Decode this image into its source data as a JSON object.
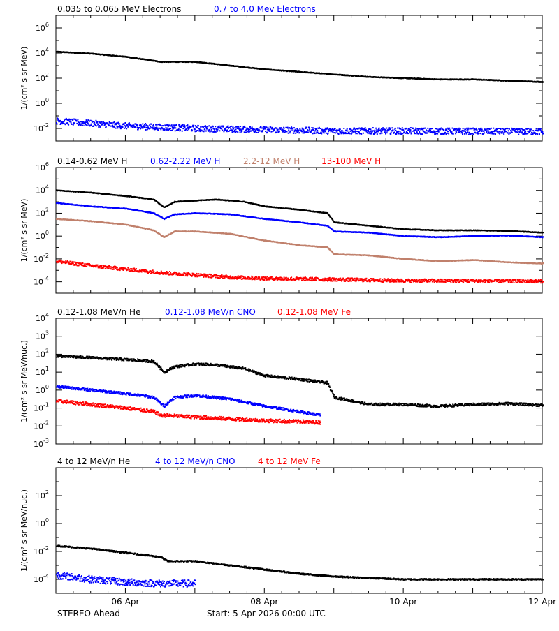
{
  "colors": {
    "black": "#000000",
    "blue": "#0000ff",
    "tan": "#c0806c",
    "red": "#ff0000"
  },
  "footer": {
    "left": "STEREO Ahead",
    "center": "Start:  5-Apr-2026 00:00 UTC"
  },
  "x_axis": {
    "range_days": [
      0,
      7
    ],
    "ticks": [
      {
        "day": 1,
        "label": "06-Apr"
      },
      {
        "day": 3,
        "label": "08-Apr"
      },
      {
        "day": 5,
        "label": "10-Apr"
      },
      {
        "day": 7,
        "label": "12-Apr"
      }
    ]
  },
  "chart_data": [
    {
      "type": "scatter",
      "ylabel": "1/(cm² s sr MeV)",
      "yscale": "log",
      "ylim_exp": [
        -3,
        7
      ],
      "major_tick_exps": [
        -2,
        0,
        2,
        4,
        6
      ],
      "tick_labels": [
        {
          "exp": -2,
          "label": "10-2"
        },
        {
          "exp": 0,
          "label": "100"
        },
        {
          "exp": 2,
          "label": "102"
        },
        {
          "exp": 4,
          "label": "104"
        },
        {
          "exp": 6,
          "label": "106"
        }
      ],
      "series": [
        {
          "name": "0.035 to 0.065 MeV Electrons",
          "color": "#000000",
          "spread": 0.03,
          "log_values": [
            [
              0,
              4.1
            ],
            [
              0.5,
              3.95
            ],
            [
              1,
              3.7
            ],
            [
              1.5,
              3.3
            ],
            [
              2,
              3.3
            ],
            [
              2.5,
              3.0
            ],
            [
              3,
              2.7
            ],
            [
              3.5,
              2.5
            ],
            [
              4,
              2.3
            ],
            [
              4.5,
              2.1
            ],
            [
              5,
              2.0
            ],
            [
              5.5,
              1.9
            ],
            [
              6,
              1.9
            ],
            [
              6.5,
              1.8
            ],
            [
              7,
              1.7
            ]
          ]
        },
        {
          "name": "0.7 to 4.0 Mev Electrons",
          "color": "#0000ff",
          "spread": 0.25,
          "log_values": [
            [
              0,
              -1.4
            ],
            [
              1,
              -1.8
            ],
            [
              2,
              -2.0
            ],
            [
              3,
              -2.1
            ],
            [
              4,
              -2.2
            ],
            [
              5,
              -2.2
            ],
            [
              7,
              -2.25
            ]
          ]
        }
      ]
    },
    {
      "type": "scatter",
      "ylabel": "1/(cm² s sr MeV)",
      "yscale": "log",
      "ylim_exp": [
        -5,
        6
      ],
      "major_tick_exps": [
        -4,
        -2,
        0,
        2,
        4,
        6
      ],
      "tick_labels": [
        {
          "exp": -4,
          "label": "10-4"
        },
        {
          "exp": -2,
          "label": "10-2"
        },
        {
          "exp": 0,
          "label": "100"
        },
        {
          "exp": 2,
          "label": "102"
        },
        {
          "exp": 4,
          "label": "104"
        },
        {
          "exp": 6,
          "label": "106"
        }
      ],
      "series": [
        {
          "name": "0.14-0.62 MeV H",
          "color": "#000000",
          "spread": 0.03,
          "log_values": [
            [
              0,
              4.0
            ],
            [
              0.5,
              3.8
            ],
            [
              1,
              3.5
            ],
            [
              1.4,
              3.2
            ],
            [
              1.55,
              2.5
            ],
            [
              1.7,
              3.0
            ],
            [
              2,
              3.1
            ],
            [
              2.3,
              3.2
            ],
            [
              2.7,
              3.0
            ],
            [
              3,
              2.6
            ],
            [
              3.5,
              2.3
            ],
            [
              3.9,
              2.0
            ],
            [
              4,
              1.2
            ],
            [
              4.5,
              0.9
            ],
            [
              5,
              0.6
            ],
            [
              5.5,
              0.5
            ],
            [
              6,
              0.5
            ],
            [
              6.5,
              0.45
            ],
            [
              7,
              0.3
            ]
          ]
        },
        {
          "name": "0.62-2.22 MeV H",
          "color": "#0000ff",
          "spread": 0.03,
          "log_values": [
            [
              0,
              2.9
            ],
            [
              0.5,
              2.6
            ],
            [
              1,
              2.4
            ],
            [
              1.4,
              2.0
            ],
            [
              1.55,
              1.5
            ],
            [
              1.7,
              1.9
            ],
            [
              2,
              2.0
            ],
            [
              2.5,
              1.9
            ],
            [
              3,
              1.5
            ],
            [
              3.5,
              1.2
            ],
            [
              3.9,
              0.9
            ],
            [
              4,
              0.4
            ],
            [
              4.5,
              0.3
            ],
            [
              5,
              0.0
            ],
            [
              5.5,
              -0.1
            ],
            [
              6,
              0.0
            ],
            [
              6.5,
              0.05
            ],
            [
              7,
              -0.1
            ]
          ]
        },
        {
          "name": "2.2-12 MeV H",
          "color": "#c0806c",
          "spread": 0.03,
          "log_values": [
            [
              0,
              1.5
            ],
            [
              0.5,
              1.3
            ],
            [
              1,
              1.0
            ],
            [
              1.4,
              0.5
            ],
            [
              1.55,
              -0.1
            ],
            [
              1.7,
              0.4
            ],
            [
              2,
              0.4
            ],
            [
              2.5,
              0.2
            ],
            [
              3,
              -0.4
            ],
            [
              3.5,
              -0.8
            ],
            [
              3.9,
              -1.0
            ],
            [
              4,
              -1.6
            ],
            [
              4.5,
              -1.7
            ],
            [
              5,
              -2.0
            ],
            [
              5.5,
              -2.2
            ],
            [
              6,
              -2.1
            ],
            [
              6.5,
              -2.3
            ],
            [
              7,
              -2.4
            ]
          ]
        },
        {
          "name": "13-100 MeV H",
          "color": "#ff0000",
          "spread": 0.15,
          "log_values": [
            [
              0,
              -2.2
            ],
            [
              0.5,
              -2.6
            ],
            [
              1,
              -2.9
            ],
            [
              1.5,
              -3.2
            ],
            [
              2,
              -3.4
            ],
            [
              2.5,
              -3.6
            ],
            [
              3,
              -3.7
            ],
            [
              4,
              -3.8
            ],
            [
              5,
              -3.9
            ],
            [
              7,
              -3.95
            ]
          ]
        }
      ]
    },
    {
      "type": "scatter",
      "ylabel": "1/(cm² s sr MeV/nuc.)",
      "yscale": "log",
      "ylim_exp": [
        -3,
        4
      ],
      "major_tick_exps": [
        -3,
        -2,
        -1,
        0,
        1,
        2,
        3,
        4
      ],
      "tick_labels": [
        {
          "exp": -3,
          "label": "10-3"
        },
        {
          "exp": -2,
          "label": "10-2"
        },
        {
          "exp": -1,
          "label": "10-1"
        },
        {
          "exp": 0,
          "label": "100"
        },
        {
          "exp": 1,
          "label": "101"
        },
        {
          "exp": 2,
          "label": "102"
        },
        {
          "exp": 3,
          "label": "103"
        },
        {
          "exp": 4,
          "label": "104"
        }
      ],
      "series": [
        {
          "name": "0.12-1.08 MeV/n He",
          "color": "#000000",
          "spread": 0.07,
          "log_values": [
            [
              0,
              1.9
            ],
            [
              0.5,
              1.8
            ],
            [
              1,
              1.7
            ],
            [
              1.4,
              1.6
            ],
            [
              1.55,
              1.0
            ],
            [
              1.7,
              1.3
            ],
            [
              2,
              1.45
            ],
            [
              2.3,
              1.4
            ],
            [
              2.7,
              1.2
            ],
            [
              3,
              0.8
            ],
            [
              3.5,
              0.6
            ],
            [
              3.9,
              0.4
            ],
            [
              4,
              -0.4
            ],
            [
              4.5,
              -0.8
            ],
            [
              5,
              -0.8
            ],
            [
              5.5,
              -0.9
            ],
            [
              6,
              -0.8
            ],
            [
              6.5,
              -0.75
            ],
            [
              7,
              -0.85
            ]
          ]
        },
        {
          "name": "0.12-1.08 MeV/n CNO",
          "color": "#0000ff",
          "spread": 0.07,
          "log_values": [
            [
              0,
              0.2
            ],
            [
              0.5,
              0.0
            ],
            [
              1,
              -0.2
            ],
            [
              1.4,
              -0.4
            ],
            [
              1.55,
              -0.9
            ],
            [
              1.7,
              -0.4
            ],
            [
              2,
              -0.3
            ],
            [
              2.5,
              -0.5
            ],
            [
              3,
              -0.9
            ],
            [
              3.5,
              -1.2
            ],
            [
              3.8,
              -1.4
            ]
          ]
        },
        {
          "name": "0.12-1.08 MeV Fe",
          "color": "#ff0000",
          "spread": 0.1,
          "log_values": [
            [
              0,
              -0.6
            ],
            [
              0.5,
              -0.8
            ],
            [
              1,
              -1.0
            ],
            [
              1.4,
              -1.2
            ],
            [
              1.5,
              -1.4
            ],
            [
              2,
              -1.5
            ],
            [
              2.5,
              -1.6
            ],
            [
              3,
              -1.7
            ],
            [
              3.5,
              -1.75
            ],
            [
              3.8,
              -1.8
            ]
          ]
        }
      ]
    },
    {
      "type": "scatter",
      "ylabel": "1/(cm² s sr MeV/nuc.)",
      "yscale": "log",
      "ylim_exp": [
        -5,
        4
      ],
      "major_tick_exps": [
        -4,
        -2,
        0,
        2
      ],
      "tick_labels": [
        {
          "exp": -4,
          "label": "10-4"
        },
        {
          "exp": -2,
          "label": "10-2"
        },
        {
          "exp": 0,
          "label": "100"
        },
        {
          "exp": 2,
          "label": "102"
        }
      ],
      "series": [
        {
          "name": "4 to 12 MeV/n He",
          "color": "#000000",
          "spread": 0.05,
          "log_values": [
            [
              0,
              -1.6
            ],
            [
              0.5,
              -1.8
            ],
            [
              1,
              -2.1
            ],
            [
              1.5,
              -2.4
            ],
            [
              1.6,
              -2.7
            ],
            [
              2,
              -2.7
            ],
            [
              2.5,
              -3.0
            ],
            [
              3,
              -3.3
            ],
            [
              3.5,
              -3.6
            ],
            [
              4,
              -3.8
            ],
            [
              5,
              -4.0
            ],
            [
              7,
              -4.0
            ]
          ]
        },
        {
          "name": "4 to 12 MeV/n CNO",
          "color": "#0000ff",
          "spread": 0.25,
          "log_values": [
            [
              0,
              -3.7
            ],
            [
              0.5,
              -4.0
            ],
            [
              1,
              -4.2
            ],
            [
              1.5,
              -4.3
            ],
            [
              2,
              -4.3
            ]
          ]
        },
        {
          "name": "4 to 12 MeV Fe",
          "color": "#ff0000",
          "spread": 0.0,
          "log_values": []
        }
      ]
    }
  ]
}
